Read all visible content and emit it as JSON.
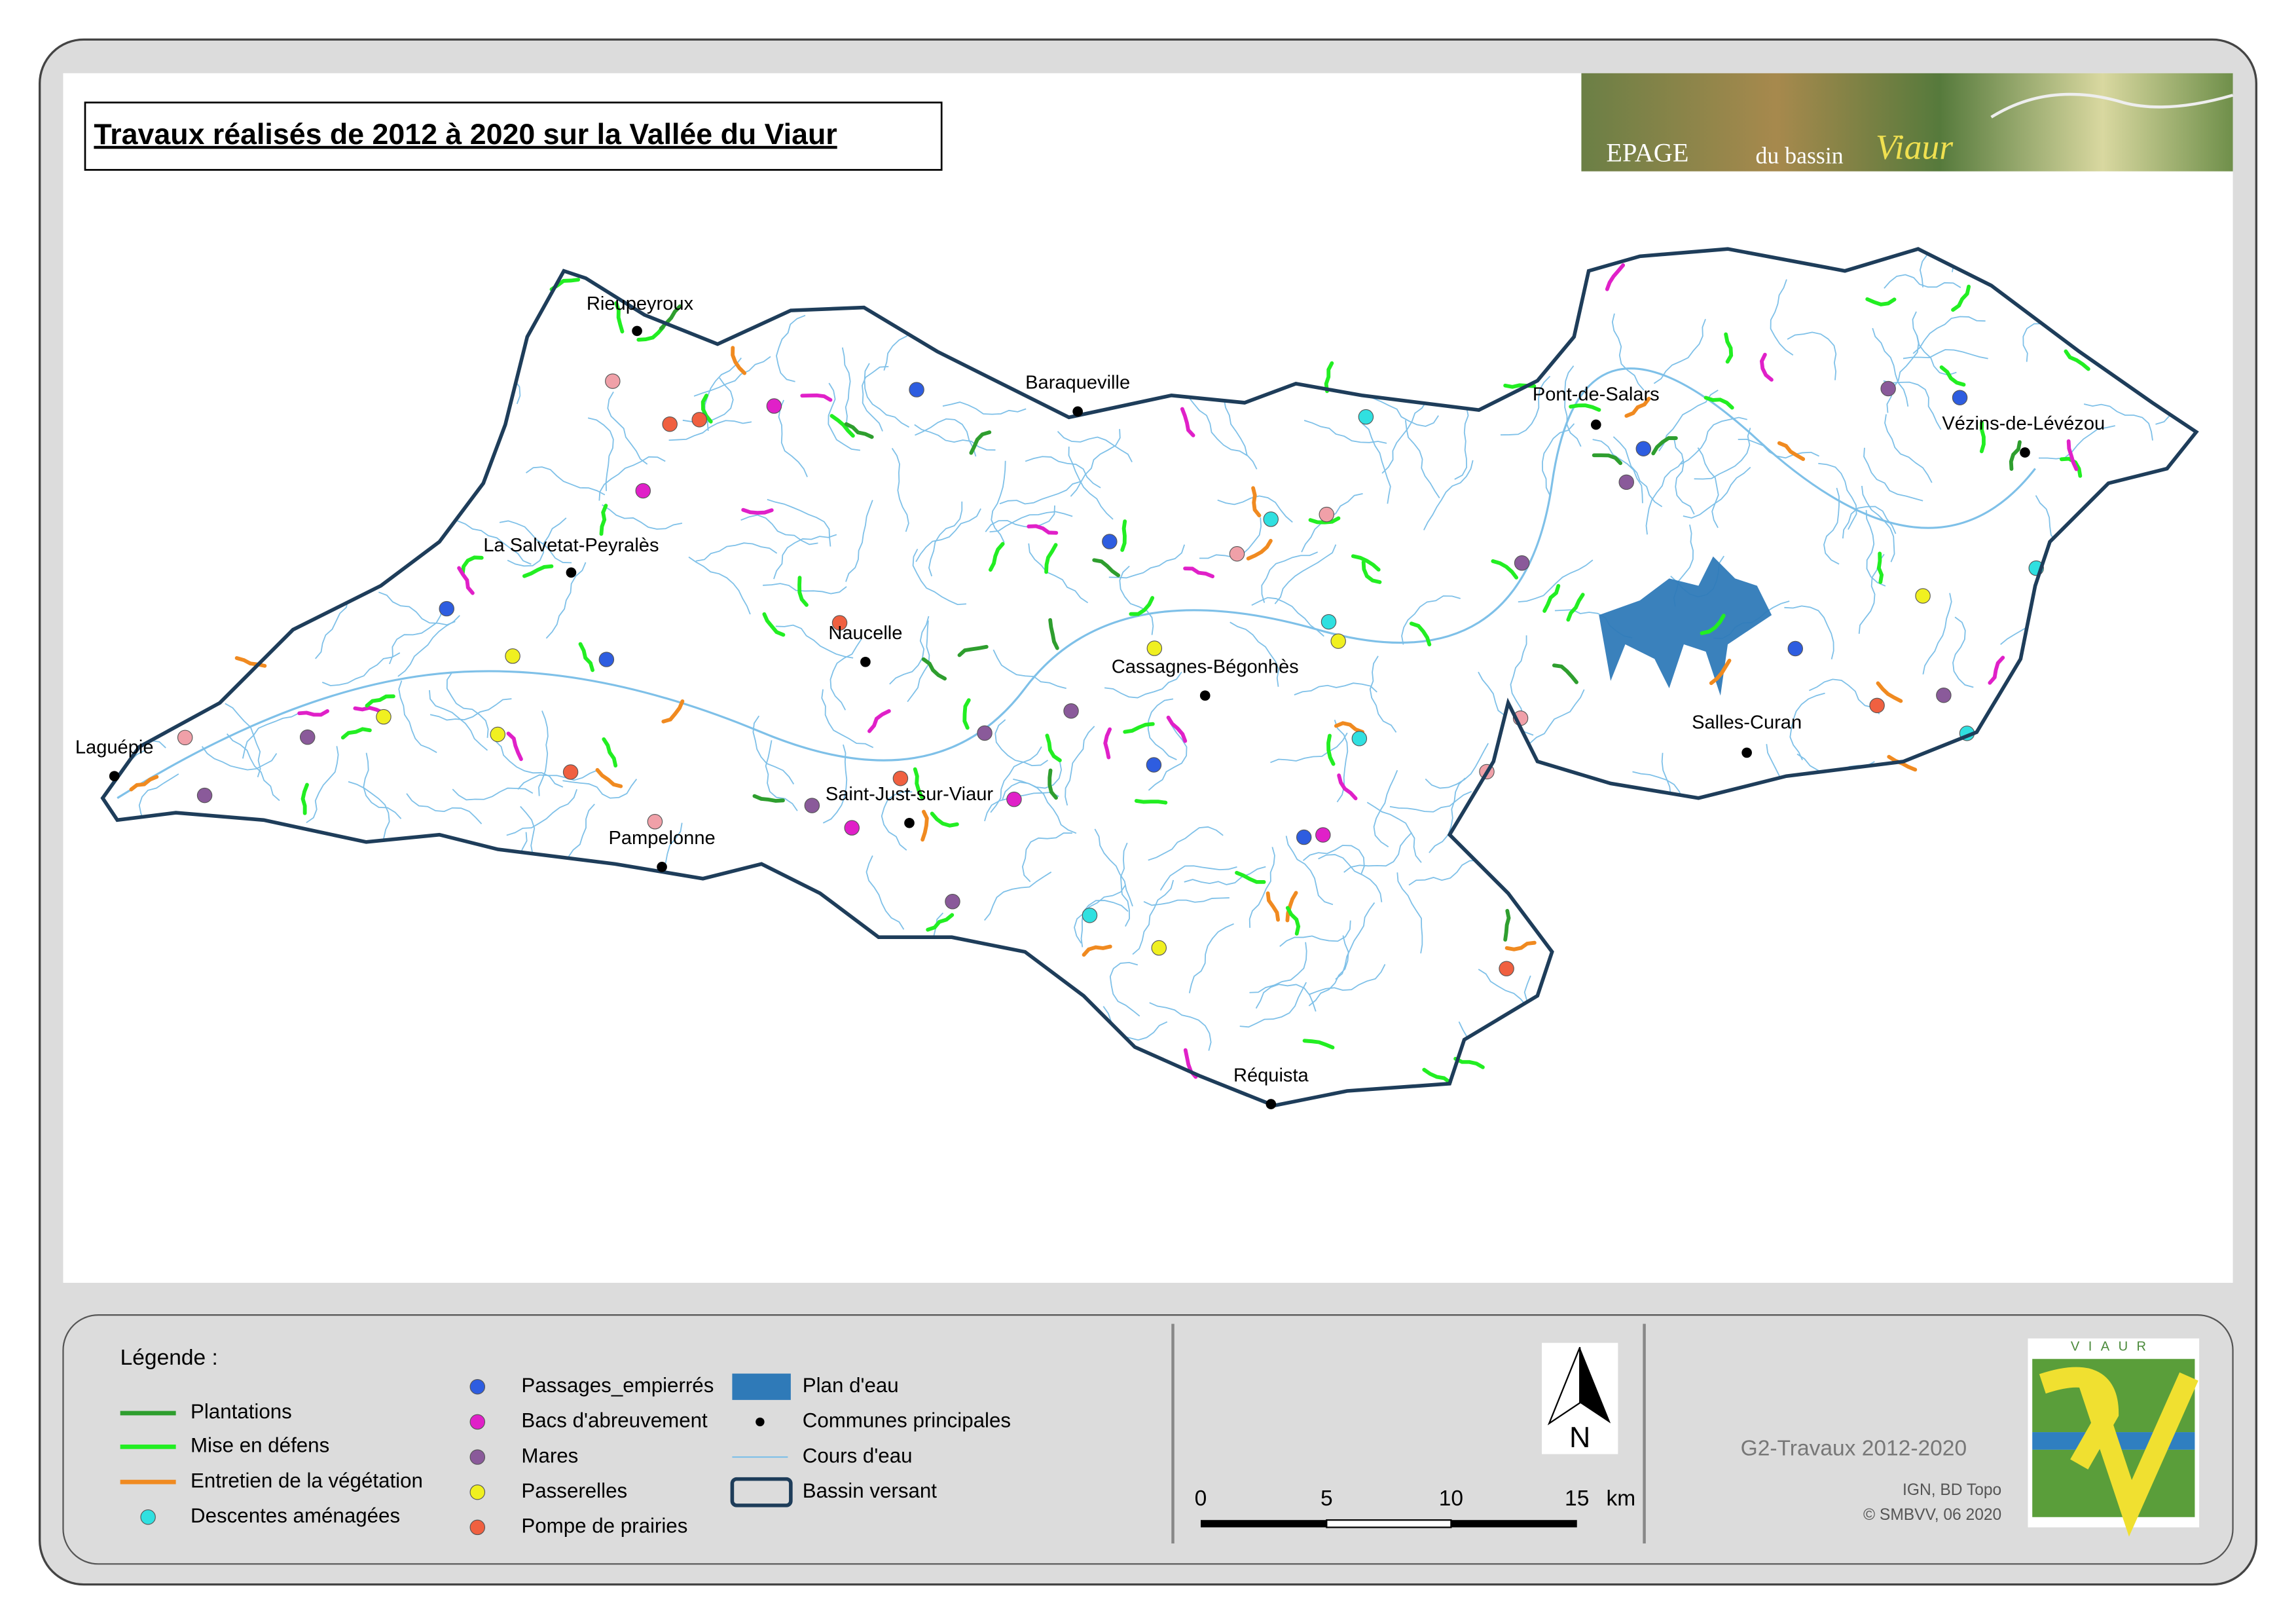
{
  "header": {
    "title": "Travaux réalisés de 2012 à 2020 sur la Vallée du Viaur",
    "logo": {
      "name": "EPAGE",
      "subtitle": "du bassin",
      "river": "Viaur"
    }
  },
  "map": {
    "towns": [
      "Rieupeyroux",
      "Baraqueville",
      "Pont-de-Salars",
      "Vézins-de-Lévézou",
      "La Salvetat-Peyralès",
      "Naucelle",
      "Cassagnes-Bégonhès",
      "Laguépie",
      "Salles-Curan",
      "Saint-Just-sur-Viaur",
      "Pampelonne",
      "Réquista"
    ]
  },
  "legend": {
    "title": "Légende :",
    "items": [
      "Plantations",
      "Mise en défens",
      "Entretien de la végétation",
      "Descentes aménagées",
      "Passages_empierrés",
      "Bacs d'abreuvement",
      "Mares",
      "Passerelles",
      "Pompe de prairies",
      "Plan d'eau",
      "Communes principales",
      "Cours d'eau",
      "Bassin versant"
    ]
  },
  "north_arrow": {
    "label": "N"
  },
  "scale_bar": {
    "labels": [
      "0",
      "5",
      "10",
      "15"
    ],
    "unit": "km"
  },
  "footer": {
    "map_id": "G2-Travaux 2012-2020",
    "sources": "IGN, BD Topo",
    "copyright": "© SMBVV, 06 2020",
    "logo_text": "VIAUR"
  }
}
